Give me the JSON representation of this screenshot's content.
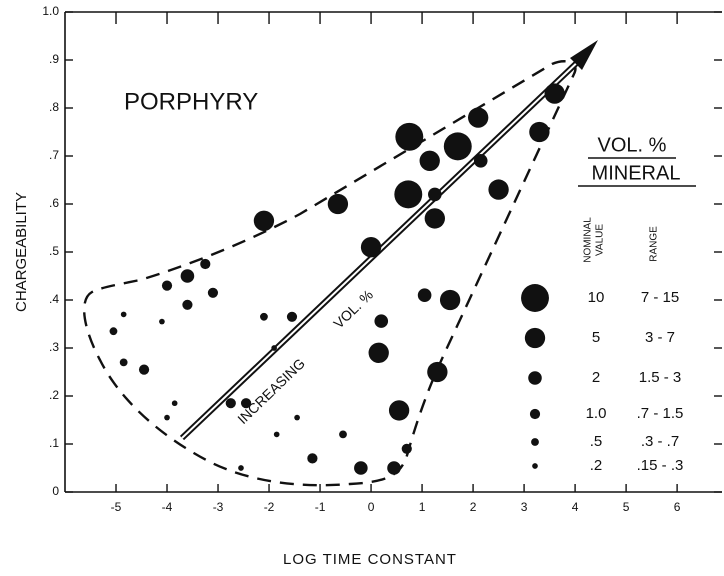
{
  "chart_data": {
    "type": "bubble",
    "xlabel": "LOG TIME CONSTANT",
    "ylabel": "CHARGEABILITY",
    "color": "#111111",
    "grid": false,
    "xlim": [
      -6,
      6.88
    ],
    "ylim": [
      0,
      1
    ],
    "xticks": [
      -5,
      -4,
      -3,
      -2,
      -1,
      0,
      1,
      2,
      3,
      4,
      5,
      6
    ],
    "yticks": [
      0,
      {
        "value": 0.1,
        "label": ".1"
      },
      {
        "value": 0.2,
        "label": ".2"
      },
      {
        "value": 0.3,
        "label": ".3"
      },
      {
        "value": 0.4,
        "label": ".4"
      },
      {
        "value": 0.5,
        "label": ".5"
      },
      {
        "value": 0.6,
        "label": ".6"
      },
      {
        "value": 0.7,
        "label": ".7"
      },
      {
        "value": 0.8,
        "label": ".8"
      },
      {
        "value": 0.9,
        "label": ".9"
      },
      {
        "value": 1,
        "label": "1.0"
      }
    ],
    "x": [
      0.75,
      2.1,
      1.7,
      1.15,
      2.15,
      1.25,
      0.73,
      1.25,
      2.5,
      3.6,
      3.3,
      -2.1,
      -0.65,
      0,
      1.05,
      1.55,
      0.2,
      0.15,
      1.3,
      0.55,
      0.7,
      0.45,
      -0.2,
      -0.55,
      -1.15,
      -3.6,
      -4,
      -3.25,
      -3.1,
      -3.6,
      -4.1,
      -5.05,
      -4.85,
      -4.85,
      -4.45,
      -2.1,
      -1.55,
      -1.9,
      -2.75,
      -2.45,
      -3.85,
      -4,
      -1.85,
      -1.45,
      -2.55
    ],
    "values": [
      0.74,
      0.78,
      0.72,
      0.69,
      0.69,
      0.62,
      0.62,
      0.57,
      0.63,
      0.83,
      0.75,
      0.565,
      0.6,
      0.51,
      0.41,
      0.4,
      0.356,
      0.29,
      0.25,
      0.17,
      0.09,
      0.05,
      0.05,
      0.12,
      0.07,
      0.45,
      0.43,
      0.475,
      0.415,
      0.39,
      0.355,
      0.335,
      0.37,
      0.27,
      0.255,
      0.365,
      0.365,
      0.3,
      0.185,
      0.185,
      0.185,
      0.155,
      0.12,
      0.155,
      0.05
    ],
    "sizes": [
      10,
      5,
      10,
      5,
      2,
      2,
      10,
      5,
      5,
      5,
      5,
      5,
      5,
      5,
      2,
      5,
      2,
      5,
      5,
      5,
      1,
      2,
      2,
      0.5,
      1,
      2,
      1,
      1,
      1,
      1,
      0.2,
      0.5,
      0.2,
      0.5,
      1,
      0.5,
      1,
      0.2,
      1,
      1,
      0.2,
      0.2,
      0.2,
      0.2,
      0.2
    ],
    "annotations": [
      "PORPHYRY",
      "INCREASING",
      "VOL. %"
    ],
    "legend": {
      "title": [
        "VOL. %",
        "MINERAL"
      ],
      "nominal_header": [
        "NOMINAL",
        "VALUE"
      ],
      "range_header": "RANGE",
      "sizes": [
        10,
        5,
        2,
        {
          "value": 1,
          "label": "1.0"
        },
        {
          "value": 0.5,
          "label": ".5"
        },
        {
          "value": 0.2,
          "label": ".2"
        }
      ],
      "ranges": [
        "7 - 15",
        "3 - 7",
        "1.5 - 3",
        ".7 - 1.5",
        ".3 - .7",
        ".15 - .3"
      ]
    }
  }
}
